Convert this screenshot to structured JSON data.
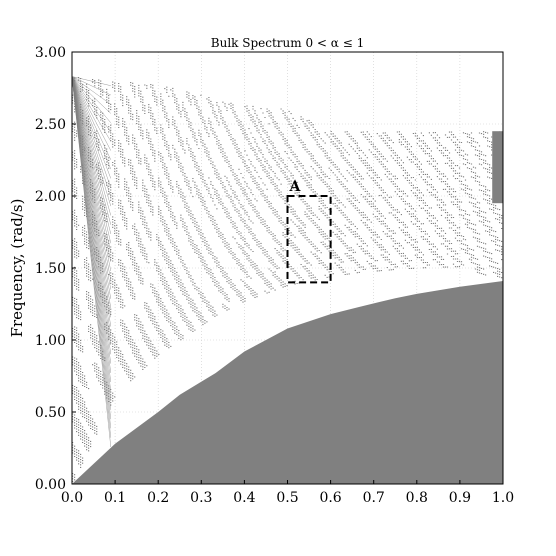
{
  "chart_data": {
    "type": "scatter",
    "title": "Bulk Spectrum 0 < α ≤ 1",
    "xlabel": "",
    "ylabel": "Frequency, (rad/s)",
    "xlim": [
      0.0,
      1.0
    ],
    "ylim": [
      0.0,
      3.0
    ],
    "x_ticks": [
      "0.0",
      "0.1",
      "0.2",
      "0.3",
      "0.4",
      "0.5",
      "0.6",
      "0.7",
      "0.8",
      "0.9",
      "1.0"
    ],
    "y_ticks": [
      "0.00",
      "0.50",
      "1.00",
      "1.50",
      "2.00",
      "2.50",
      "3.00"
    ],
    "grid": true,
    "band_color": "#808080",
    "band_edges": {
      "x": [
        0.0,
        0.1,
        0.2,
        0.25,
        0.333,
        0.4,
        0.5,
        0.6,
        0.667,
        0.75,
        0.8,
        0.9,
        1.0
      ],
      "lowest_band_top": [
        0.0,
        0.28,
        0.5,
        0.62,
        0.77,
        0.92,
        1.08,
        1.18,
        1.23,
        1.29,
        1.32,
        1.37,
        1.41
      ],
      "main_gap_top": [
        0.0,
        0.62,
        0.9,
        1.0,
        1.17,
        1.27,
        1.38,
        1.44,
        1.47,
        1.49,
        1.5,
        1.51,
        1.41
      ],
      "upper_band_top": [
        2.83,
        2.8,
        2.77,
        2.74,
        2.67,
        2.63,
        2.6,
        2.45,
        2.45,
        2.45,
        2.45,
        2.45,
        2.45
      ]
    },
    "annotation": {
      "label": "A",
      "box_x": [
        0.5,
        0.6
      ],
      "box_y": [
        1.4,
        2.0
      ]
    }
  }
}
